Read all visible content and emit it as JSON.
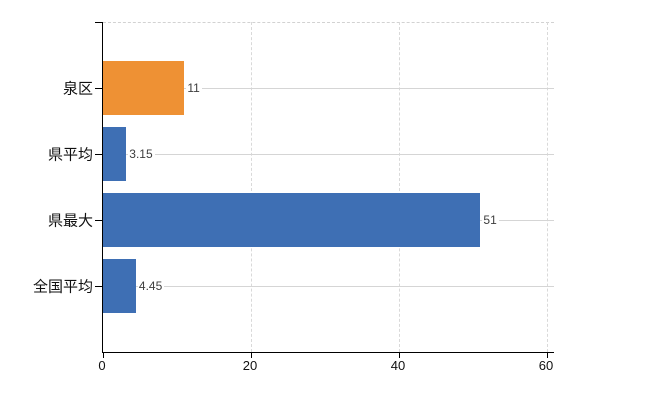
{
  "chart_data": {
    "type": "bar",
    "orientation": "horizontal",
    "title": "",
    "xlabel": "",
    "ylabel": "",
    "categories": [
      "泉区",
      "県平均",
      "県最大",
      "全国平均"
    ],
    "values": [
      11,
      3.15,
      51,
      4.45
    ],
    "value_labels": [
      "11",
      "3.15",
      "51",
      "4.45"
    ],
    "series": [
      {
        "name": "",
        "values": [
          11,
          3.15,
          51,
          4.45
        ]
      }
    ],
    "bar_colors": [
      "#EE9134",
      "#3E6FB4",
      "#3E6FB4",
      "#3E6FB4"
    ],
    "x_ticks": [
      0,
      20,
      40,
      60
    ],
    "x_tick_labels": [
      "0",
      "20",
      "40",
      "60"
    ],
    "xlim": [
      0,
      60
    ],
    "grid": true,
    "legend": false
  },
  "colors": {
    "highlight_bar": "#EE9134",
    "default_bar": "#3E6FB4",
    "horizontal_gridline": "#d5d5d5",
    "vertical_gridline": "#d9d9d9",
    "axis": "#000000",
    "background": "#ffffff",
    "value_label_text": "#3d3d3d",
    "tick_label_text": "#111111"
  }
}
